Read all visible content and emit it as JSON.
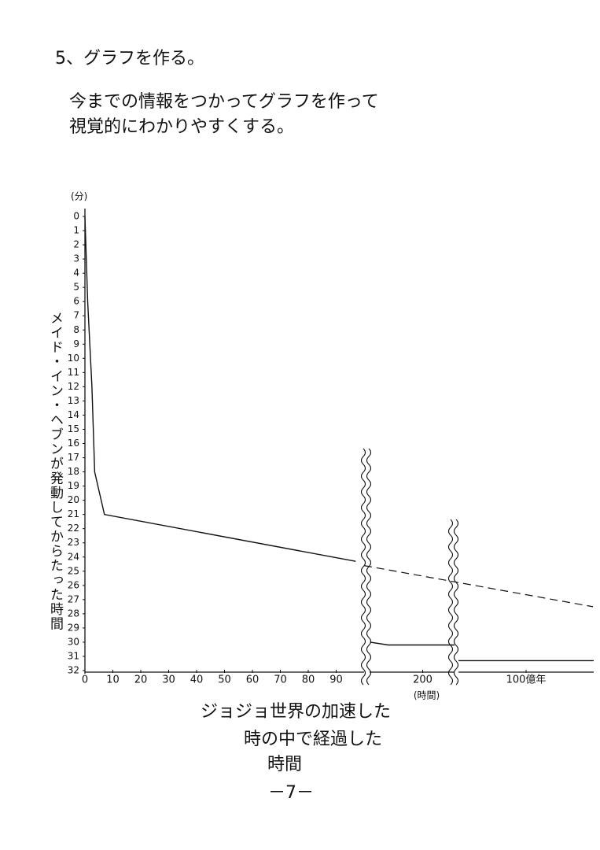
{
  "heading": "5、グラフを作る。",
  "body": [
    "今までの情報をつかってグラフを作って",
    "視覚的にわかりやすくする。"
  ],
  "chart_data": {
    "type": "line",
    "ylabel": "メイド・イン・ヘブンが発動してからたった時間",
    "yunit": "(分)",
    "xlabel": [
      "ジョジョ世界の加速した",
      "時の中で経過した",
      "時間"
    ],
    "ylim": [
      0,
      32
    ],
    "y_reversed": true,
    "yticks": [
      0,
      1,
      2,
      3,
      4,
      5,
      6,
      7,
      8,
      9,
      10,
      11,
      12,
      13,
      14,
      15,
      16,
      17,
      18,
      19,
      20,
      21,
      22,
      23,
      24,
      25,
      26,
      27,
      28,
      29,
      30,
      31,
      32
    ],
    "color": "#111111",
    "panels": [
      {
        "xlim": [
          0,
          100
        ],
        "xticks": [
          0,
          10,
          20,
          30,
          40,
          50,
          60,
          70,
          80,
          90
        ],
        "series": [
          {
            "x": [
              0,
              1,
              2.5,
              3.5,
              7,
              97
            ],
            "values": [
              0,
              6,
              12,
              18,
              21,
              24.3
            ]
          }
        ]
      },
      {
        "xlim": [
          100,
          260
        ],
        "xticks": [
          200
        ],
        "xtick_note": "(時間)",
        "series": [
          {
            "x": [
              101,
              135,
              260
            ],
            "values": [
              30,
              30.2,
              30.2
            ]
          }
        ]
      },
      {
        "xlim": [
          0,
          20000000000
        ],
        "xticks": [
          {
            "value": 10000000000,
            "label": "100億年"
          }
        ],
        "series": [
          {
            "x": [
              0,
              20000000000
            ],
            "values": [
              31.3,
              31.3
            ]
          }
        ]
      }
    ],
    "extrapolation": {
      "x": [
        100,
        182
      ],
      "values": [
        24.6,
        27.5
      ],
      "dashed": true
    }
  },
  "page_number": "－7－"
}
